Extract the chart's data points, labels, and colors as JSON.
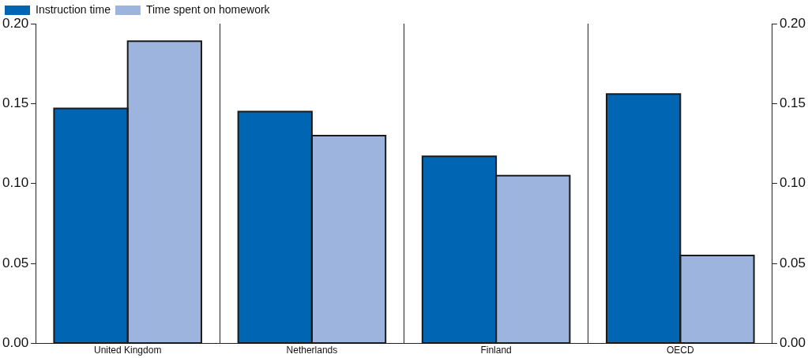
{
  "chart_data": {
    "type": "bar",
    "categories": [
      "United Kingdom",
      "Netherlands",
      "Finland",
      "OECD"
    ],
    "series": [
      {
        "name": "Instruction time",
        "color": "#0066b3",
        "values": [
          0.147,
          0.145,
          0.117,
          0.156
        ]
      },
      {
        "name": "Time spent on homework",
        "color": "#9db5de",
        "values": [
          0.189,
          0.13,
          0.105,
          0.055
        ]
      }
    ],
    "ylim": [
      0,
      0.2
    ],
    "yticks": [
      {
        "value": 0,
        "label": "0.00"
      },
      0.05,
      {
        "value": 0.1,
        "label": "0.10"
      },
      0.15,
      {
        "value": 0.2,
        "label": "0.20"
      }
    ],
    "y2lim": [
      0,
      0.2
    ],
    "y2ticks": [
      {
        "value": 0,
        "label": "0.00"
      },
      0.05,
      {
        "value": 0.1,
        "label": "0.10"
      },
      0.15,
      {
        "value": 0.2,
        "label": "0.20"
      }
    ],
    "grid": "x",
    "legend": "top left"
  }
}
